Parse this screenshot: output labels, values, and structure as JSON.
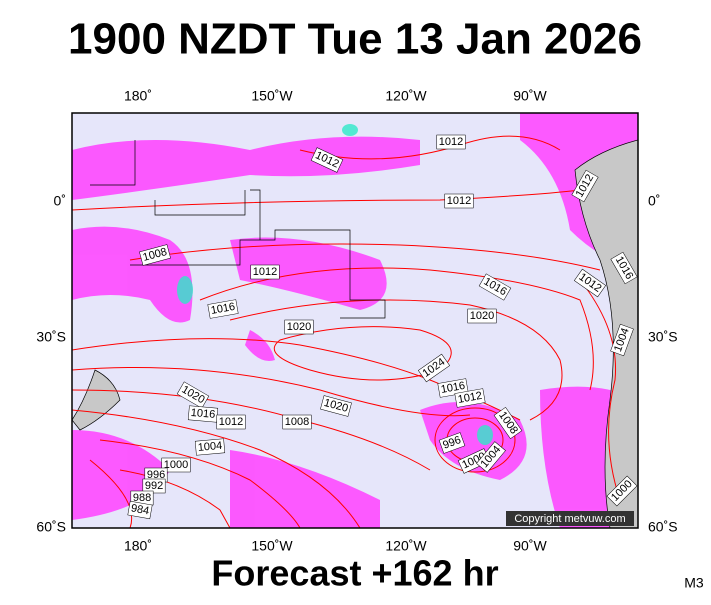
{
  "title": "1900 NZDT Tue 13 Jan 2026",
  "longitude_labels": [
    "180˚",
    "150˚W",
    "120˚W",
    "90˚W"
  ],
  "latitude_labels": [
    "0˚",
    "30˚S",
    "60˚S"
  ],
  "isobar_labels": [
    1012,
    1012,
    1012,
    1012,
    1008,
    1012,
    1016,
    1020,
    1016,
    1012,
    1016,
    1020,
    1004,
    1024,
    1016,
    1012,
    1020,
    1016,
    1012,
    1008,
    1020,
    1008,
    996,
    1004,
    1000,
    996,
    992,
    988,
    984,
    1000,
    1004,
    1000
  ],
  "copyright": "Copyright metvuw.com",
  "footer": "Forecast +162 hr",
  "model": "M3"
}
